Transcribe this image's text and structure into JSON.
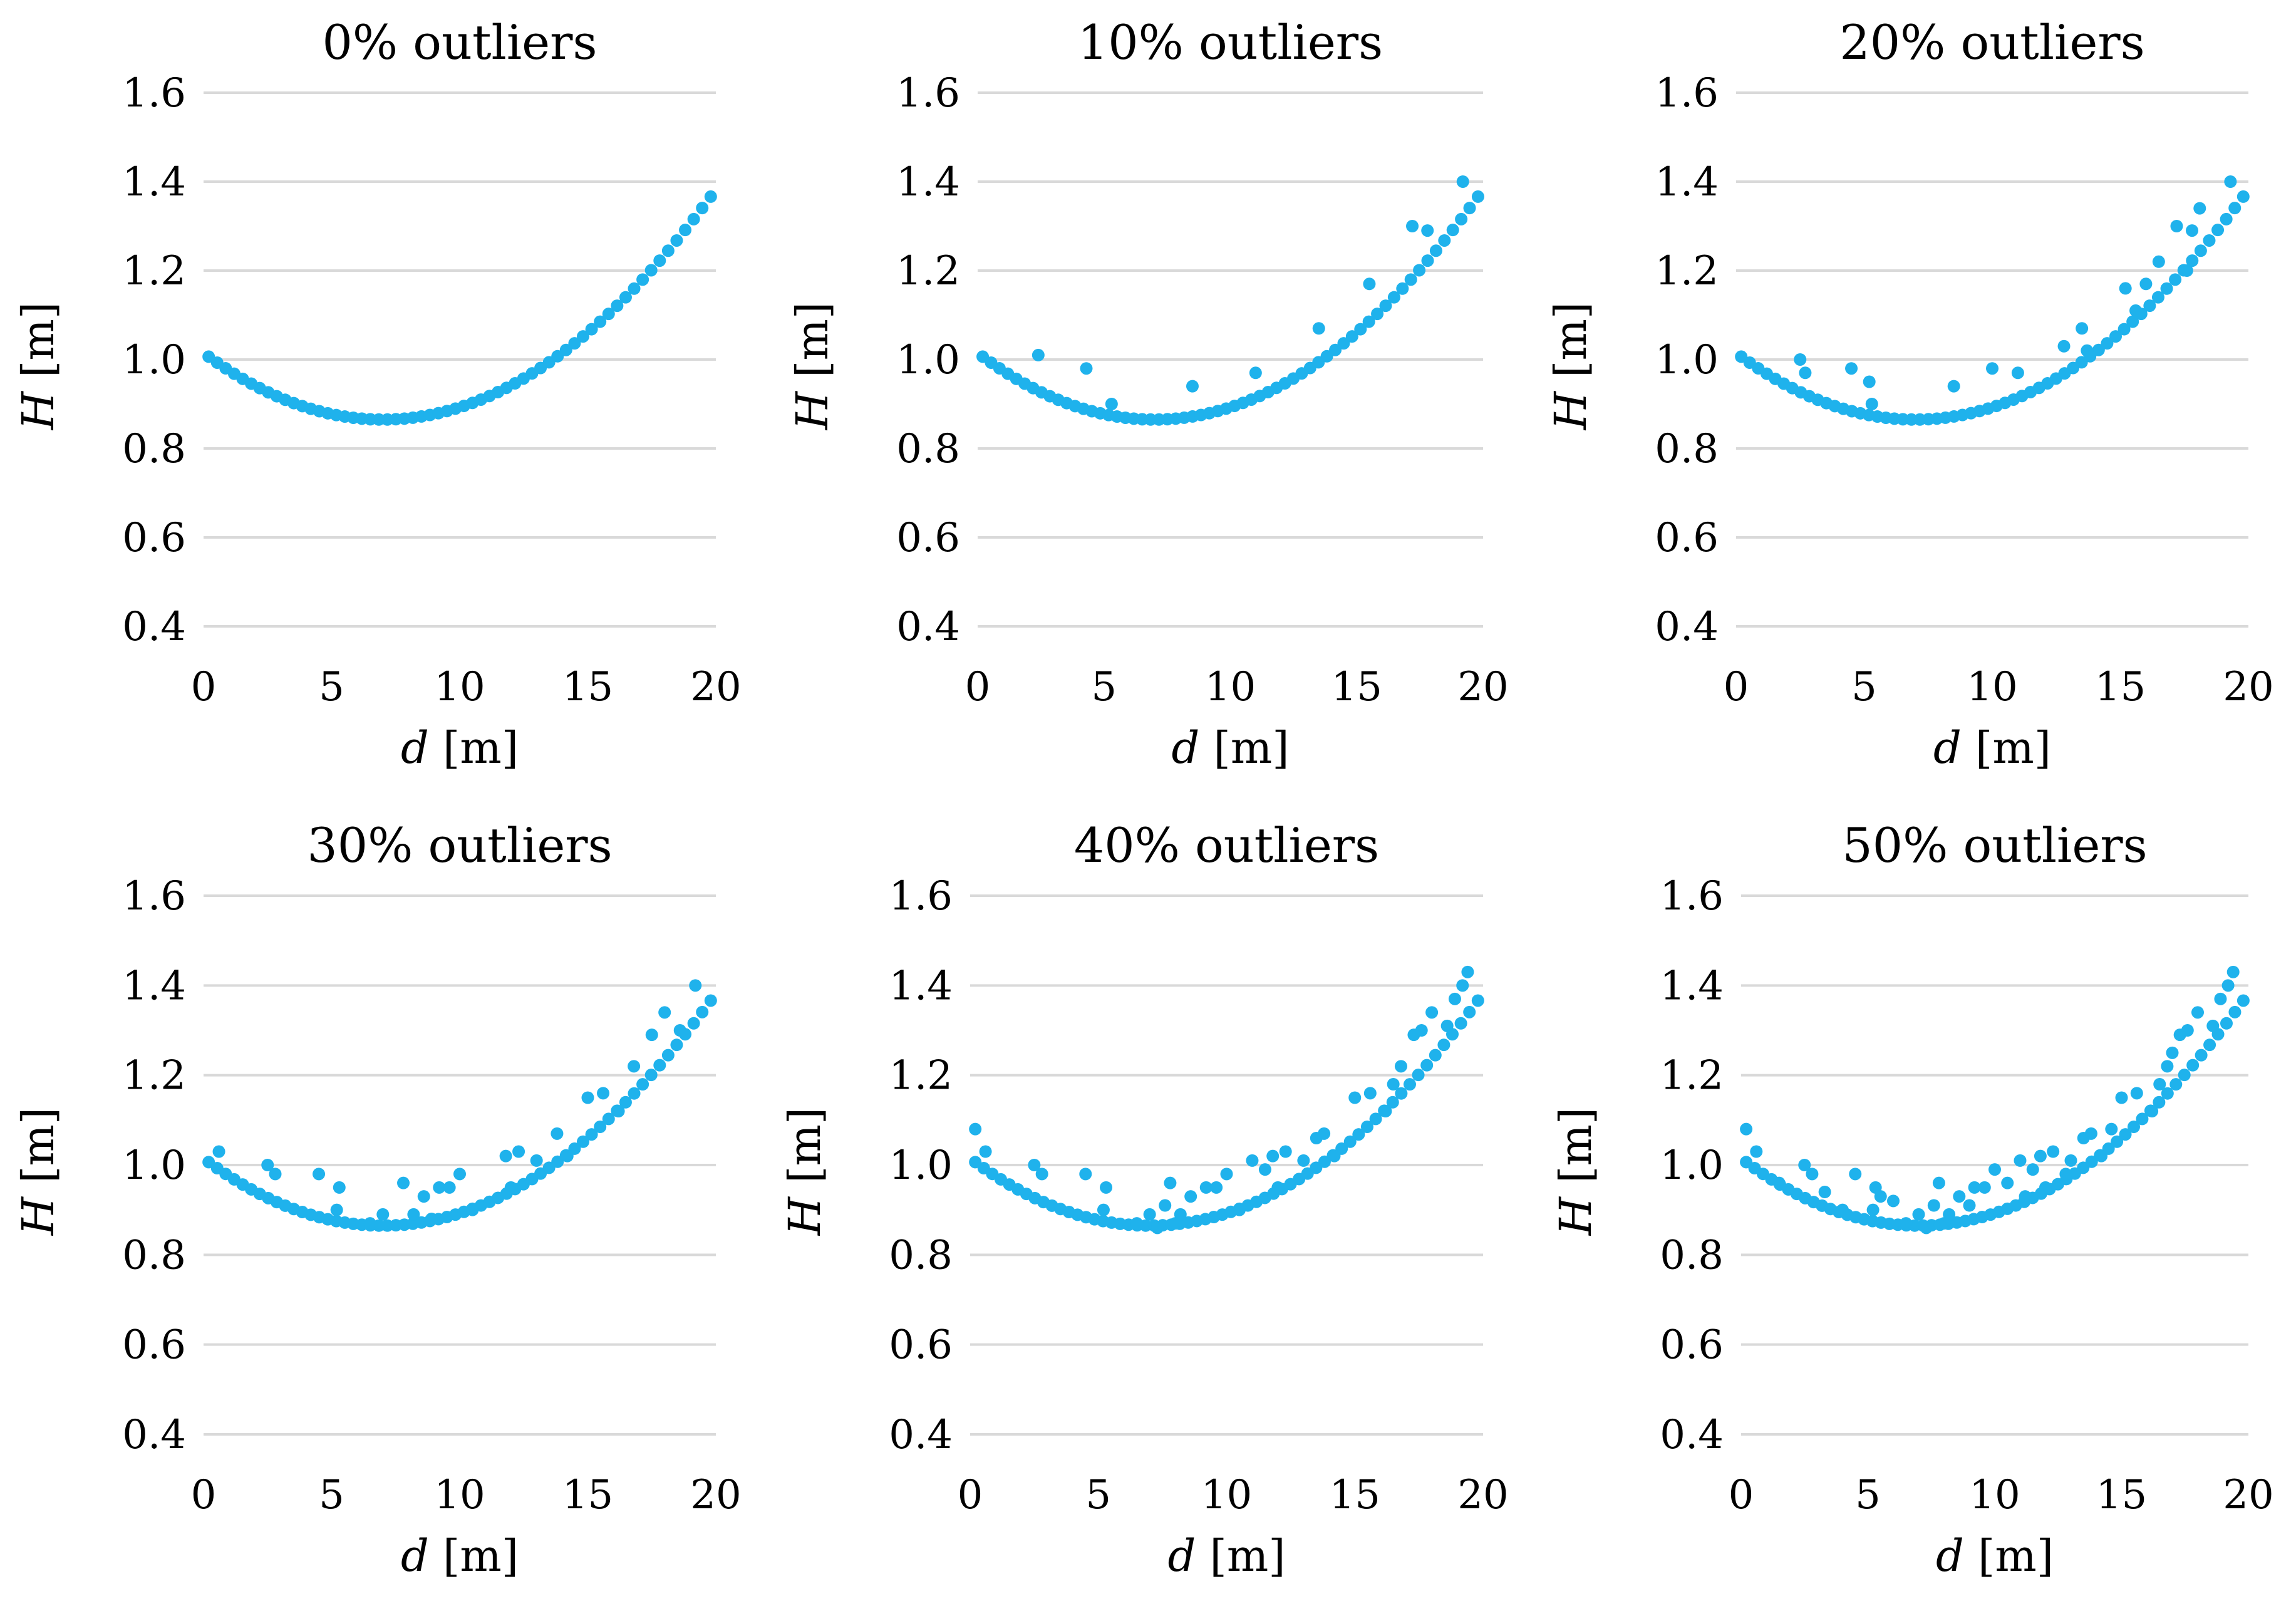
{
  "figure": {
    "name": "outlier-scatter-grid"
  },
  "colors": {
    "points": "#1fb2ec",
    "grid": "#d9d9d9",
    "text": "#000000"
  },
  "chart_data": [
    {
      "type": "scatter",
      "title": "0% outliers",
      "xlabel": "d [m]",
      "xlabel_var": "d",
      "xlabel_unit": " [m]",
      "ylabel": "H [m]",
      "ylabel_var": "H",
      "ylabel_unit": " [m]",
      "xlim": [
        0,
        20
      ],
      "ylim": [
        0.4,
        1.6
      ],
      "xticks": [
        "0",
        "5",
        "10",
        "15",
        "20"
      ],
      "yticks": [
        "0.4",
        "0.6",
        "0.8",
        "1.0",
        "1.2",
        "1.4",
        "1.6"
      ],
      "grid": true,
      "outliers": []
    },
    {
      "type": "scatter",
      "title": "10% outliers",
      "xlabel": "d [m]",
      "xlabel_var": "d",
      "xlabel_unit": " [m]",
      "ylabel": "H [m]",
      "ylabel_var": "H",
      "ylabel_unit": " [m]",
      "xlim": [
        0,
        20
      ],
      "ylim": [
        0.4,
        1.6
      ],
      "xticks": [
        "0",
        "5",
        "10",
        "15",
        "20"
      ],
      "yticks": [
        "0.4",
        "0.6",
        "0.8",
        "1.0",
        "1.2",
        "1.4",
        "1.6"
      ],
      "grid": true,
      "outliers": [
        [
          2.4,
          1.01
        ],
        [
          4.3,
          0.98
        ],
        [
          5.3,
          0.9
        ],
        [
          8.5,
          0.94
        ],
        [
          11.0,
          0.97
        ],
        [
          13.5,
          1.07
        ],
        [
          15.5,
          1.17
        ],
        [
          17.2,
          1.3
        ],
        [
          17.8,
          1.29
        ],
        [
          19.2,
          1.4
        ]
      ]
    },
    {
      "type": "scatter",
      "title": "20% outliers",
      "xlabel": "d [m]",
      "xlabel_var": "d",
      "xlabel_unit": " [m]",
      "ylabel": "H [m]",
      "ylabel_var": "H",
      "ylabel_unit": " [m]",
      "xlim": [
        0,
        20
      ],
      "ylim": [
        0.4,
        1.6
      ],
      "xticks": [
        "0",
        "5",
        "10",
        "15",
        "20"
      ],
      "yticks": [
        "0.4",
        "0.6",
        "0.8",
        "1.0",
        "1.2",
        "1.4",
        "1.6"
      ],
      "grid": true,
      "outliers": [
        [
          2.5,
          1.0
        ],
        [
          2.7,
          0.97
        ],
        [
          4.5,
          0.98
        ],
        [
          5.3,
          0.9
        ],
        [
          5.2,
          0.95
        ],
        [
          8.5,
          0.94
        ],
        [
          10.0,
          0.98
        ],
        [
          11.0,
          0.97
        ],
        [
          12.8,
          1.03
        ],
        [
          13.5,
          1.07
        ],
        [
          13.7,
          1.02
        ],
        [
          15.2,
          1.16
        ],
        [
          15.6,
          1.11
        ],
        [
          16.0,
          1.17
        ],
        [
          16.5,
          1.22
        ],
        [
          17.2,
          1.3
        ],
        [
          17.8,
          1.29
        ],
        [
          18.1,
          1.34
        ],
        [
          19.3,
          1.4
        ],
        [
          17.6,
          1.2
        ]
      ]
    },
    {
      "type": "scatter",
      "title": "30% outliers",
      "xlabel": "d [m]",
      "xlabel_var": "d",
      "xlabel_unit": " [m]",
      "ylabel": "H [m]",
      "ylabel_var": "H",
      "ylabel_unit": " [m]",
      "xlim": [
        0,
        20
      ],
      "ylim": [
        0.4,
        1.6
      ],
      "xticks": [
        "0",
        "5",
        "10",
        "15",
        "20"
      ],
      "yticks": [
        "0.4",
        "0.6",
        "0.8",
        "1.0",
        "1.2",
        "1.4",
        "1.6"
      ],
      "grid": true,
      "outliers": [
        [
          0.6,
          1.03
        ],
        [
          2.5,
          1.0
        ],
        [
          2.8,
          0.98
        ],
        [
          4.5,
          0.98
        ],
        [
          5.3,
          0.95
        ],
        [
          5.2,
          0.9
        ],
        [
          7.0,
          0.89
        ],
        [
          7.8,
          0.96
        ],
        [
          8.2,
          0.89
        ],
        [
          8.6,
          0.93
        ],
        [
          9.2,
          0.95
        ],
        [
          9.6,
          0.95
        ],
        [
          10.0,
          0.98
        ],
        [
          11.8,
          1.02
        ],
        [
          12.3,
          1.03
        ],
        [
          13.0,
          1.01
        ],
        [
          13.8,
          1.07
        ],
        [
          15.0,
          1.15
        ],
        [
          15.6,
          1.16
        ],
        [
          16.2,
          1.12
        ],
        [
          16.8,
          1.22
        ],
        [
          17.5,
          1.29
        ],
        [
          18.0,
          1.34
        ],
        [
          18.6,
          1.3
        ],
        [
          19.2,
          1.4
        ],
        [
          14.2,
          1.02
        ],
        [
          12.0,
          0.95
        ],
        [
          8.9,
          0.88
        ],
        [
          10.5,
          0.9
        ],
        [
          6.5,
          0.87
        ]
      ]
    },
    {
      "type": "scatter",
      "title": "40% outliers",
      "xlabel": "d [m]",
      "xlabel_var": "d",
      "xlabel_unit": " [m]",
      "ylabel": "H [m]",
      "ylabel_var": "H",
      "ylabel_unit": " [m]",
      "xlim": [
        0,
        20
      ],
      "ylim": [
        0.4,
        1.6
      ],
      "xticks": [
        "0",
        "5",
        "10",
        "15",
        "20"
      ],
      "yticks": [
        "0.4",
        "0.6",
        "0.8",
        "1.0",
        "1.2",
        "1.4",
        "1.6"
      ],
      "grid": true,
      "outliers": [
        [
          0.2,
          1.08
        ],
        [
          0.6,
          1.03
        ],
        [
          2.5,
          1.0
        ],
        [
          2.8,
          0.98
        ],
        [
          4.5,
          0.98
        ],
        [
          5.3,
          0.95
        ],
        [
          5.2,
          0.9
        ],
        [
          7.0,
          0.89
        ],
        [
          7.6,
          0.91
        ],
        [
          7.8,
          0.96
        ],
        [
          8.2,
          0.89
        ],
        [
          8.6,
          0.93
        ],
        [
          9.2,
          0.95
        ],
        [
          9.6,
          0.95
        ],
        [
          10.0,
          0.98
        ],
        [
          11.0,
          1.01
        ],
        [
          11.5,
          0.99
        ],
        [
          11.8,
          1.02
        ],
        [
          12.3,
          1.03
        ],
        [
          13.0,
          1.01
        ],
        [
          13.5,
          1.06
        ],
        [
          13.8,
          1.07
        ],
        [
          15.0,
          1.15
        ],
        [
          15.6,
          1.16
        ],
        [
          16.2,
          1.12
        ],
        [
          16.8,
          1.22
        ],
        [
          17.3,
          1.29
        ],
        [
          17.6,
          1.3
        ],
        [
          18.0,
          1.34
        ],
        [
          18.6,
          1.31
        ],
        [
          19.2,
          1.4
        ],
        [
          19.4,
          1.43
        ],
        [
          14.2,
          1.02
        ],
        [
          12.0,
          0.95
        ],
        [
          8.0,
          0.87
        ],
        [
          10.5,
          0.9
        ],
        [
          6.5,
          0.87
        ],
        [
          18.9,
          1.37
        ],
        [
          16.5,
          1.18
        ],
        [
          7.3,
          0.86
        ]
      ]
    },
    {
      "type": "scatter",
      "title": "50% outliers",
      "xlabel": "d [m]",
      "xlabel_var": "d",
      "xlabel_unit": " [m]",
      "ylabel": "H [m]",
      "ylabel_var": "H",
      "ylabel_unit": " [m]",
      "xlim": [
        0,
        20
      ],
      "ylim": [
        0.4,
        1.6
      ],
      "xticks": [
        "0",
        "5",
        "10",
        "15",
        "20"
      ],
      "yticks": [
        "0.4",
        "0.6",
        "0.8",
        "1.0",
        "1.2",
        "1.4",
        "1.6"
      ],
      "grid": true,
      "outliers": [
        [
          0.2,
          1.08
        ],
        [
          0.6,
          1.03
        ],
        [
          2.5,
          1.0
        ],
        [
          2.8,
          0.98
        ],
        [
          4.5,
          0.98
        ],
        [
          5.3,
          0.95
        ],
        [
          5.5,
          0.93
        ],
        [
          5.2,
          0.9
        ],
        [
          6.0,
          0.92
        ],
        [
          7.0,
          0.89
        ],
        [
          7.6,
          0.91
        ],
        [
          7.8,
          0.96
        ],
        [
          8.2,
          0.89
        ],
        [
          8.6,
          0.93
        ],
        [
          9.2,
          0.95
        ],
        [
          9.6,
          0.95
        ],
        [
          10.0,
          0.99
        ],
        [
          10.5,
          0.96
        ],
        [
          11.0,
          1.01
        ],
        [
          11.5,
          0.99
        ],
        [
          11.8,
          1.02
        ],
        [
          12.3,
          1.03
        ],
        [
          13.0,
          1.01
        ],
        [
          13.5,
          1.06
        ],
        [
          13.8,
          1.07
        ],
        [
          15.0,
          1.15
        ],
        [
          15.6,
          1.16
        ],
        [
          16.2,
          1.12
        ],
        [
          16.8,
          1.22
        ],
        [
          17.3,
          1.29
        ],
        [
          17.6,
          1.3
        ],
        [
          18.0,
          1.34
        ],
        [
          18.6,
          1.31
        ],
        [
          19.2,
          1.4
        ],
        [
          19.4,
          1.43
        ],
        [
          14.2,
          1.02
        ],
        [
          12.0,
          0.95
        ],
        [
          8.0,
          0.87
        ],
        [
          6.5,
          0.87
        ],
        [
          18.9,
          1.37
        ],
        [
          16.5,
          1.18
        ],
        [
          7.3,
          0.86
        ],
        [
          4.0,
          0.9
        ],
        [
          9.0,
          0.91
        ],
        [
          11.2,
          0.93
        ],
        [
          12.8,
          0.98
        ],
        [
          14.6,
          1.08
        ],
        [
          17.0,
          1.25
        ],
        [
          3.3,
          0.94
        ],
        [
          1.5,
          0.96
        ]
      ]
    }
  ],
  "base_curve": {
    "description": "quadratic inlier trend shared by all panels",
    "x_start": 0.2,
    "x_end": 19.8,
    "count": 60,
    "vertex_x": 7.0,
    "vertex_y": 0.865,
    "coef": 0.00306
  }
}
